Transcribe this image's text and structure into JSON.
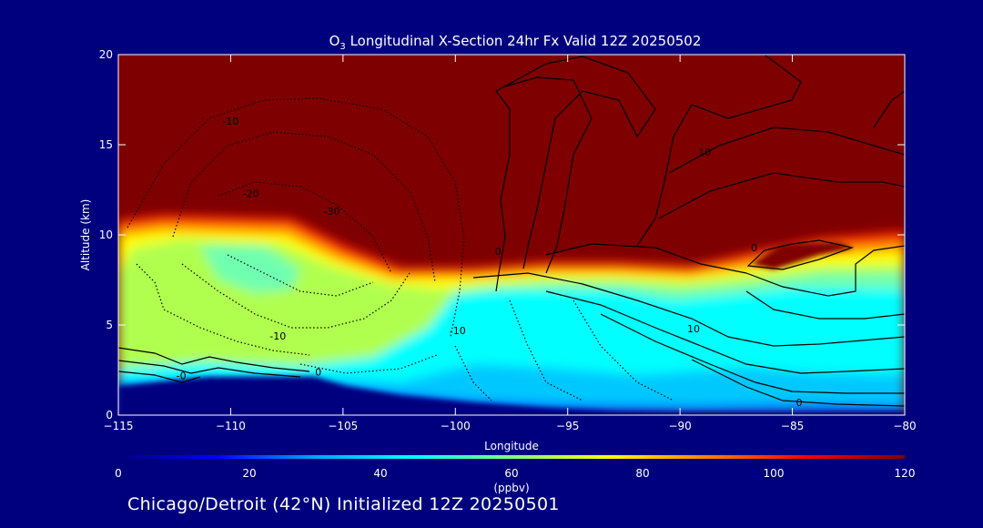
{
  "chart_data": {
    "type": "heatmap",
    "title_prefix": "O",
    "title_sub": "3",
    "title_rest": " Longitudinal X-Section 24hr  Fx Valid 12Z 20250502",
    "xlabel": "Longitude",
    "ylabel": "Altitude (km)",
    "xlim": [
      -115,
      -80
    ],
    "ylim": [
      0,
      20
    ],
    "x_ticks": [
      -115,
      -110,
      -105,
      -100,
      -95,
      -90,
      -85,
      -80
    ],
    "x_tick_labels": [
      "−115",
      "−110",
      "−105",
      "−100",
      "−95",
      "−90",
      "−85",
      "−80"
    ],
    "y_ticks": [
      0,
      5,
      10,
      15,
      20
    ],
    "y_tick_labels": [
      "0",
      "5",
      "10",
      "15",
      "20"
    ],
    "colorbar": {
      "min": 0,
      "max": 120,
      "ticks": [
        0,
        20,
        40,
        60,
        80,
        100,
        120
      ],
      "tick_labels": [
        "0",
        "20",
        "40",
        "60",
        "80",
        "100",
        "120"
      ],
      "label": "(ppbv)",
      "colors": [
        "#00007f",
        "#0000ff",
        "#00a5ff",
        "#00ffff",
        "#80ff80",
        "#ffff00",
        "#ff8000",
        "#ff0000",
        "#7f0000"
      ]
    },
    "contour_labels": [
      {
        "text": "-10",
        "lon": -110,
        "alt": 16.1
      },
      {
        "text": "-20",
        "lon": -109.1,
        "alt": 12.1
      },
      {
        "text": "-30",
        "lon": -105.5,
        "alt": 11.1
      },
      {
        "text": "-10",
        "lon": -107.9,
        "alt": 4.2
      },
      {
        "text": "-0",
        "lon": -112.2,
        "alt": 2.0
      },
      {
        "text": "0",
        "lon": -106.1,
        "alt": 2.2
      },
      {
        "text": "-10",
        "lon": -99.9,
        "alt": 4.5
      },
      {
        "text": "0",
        "lon": -98.1,
        "alt": 8.9
      },
      {
        "text": "10",
        "lon": -88.9,
        "alt": 14.4
      },
      {
        "text": "0",
        "lon": -86.7,
        "alt": 9.1
      },
      {
        "text": "10",
        "lon": -89.4,
        "alt": 4.6
      },
      {
        "text": "0",
        "lon": -84.7,
        "alt": 0.5
      }
    ]
  },
  "footer": {
    "text": "Chicago/Detroit (42°N) Initialized 12Z 20250501"
  }
}
